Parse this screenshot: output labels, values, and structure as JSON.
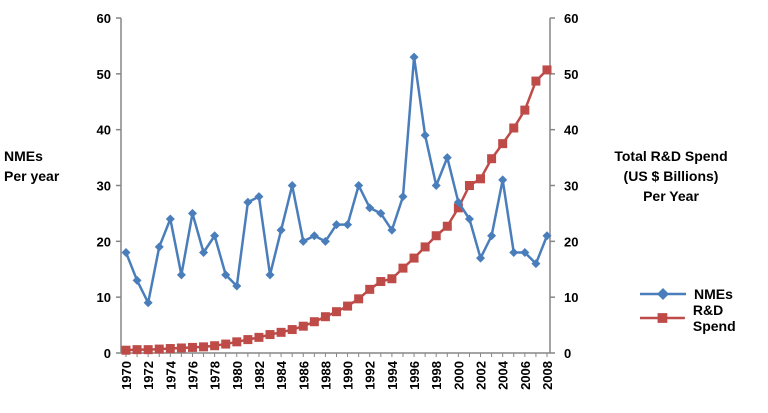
{
  "chart_data": {
    "type": "line",
    "x": [
      1970,
      1971,
      1972,
      1973,
      1974,
      1975,
      1976,
      1977,
      1978,
      1979,
      1980,
      1981,
      1982,
      1983,
      1984,
      1985,
      1986,
      1987,
      1988,
      1989,
      1990,
      1991,
      1992,
      1993,
      1994,
      1995,
      1996,
      1997,
      1998,
      1999,
      2000,
      2001,
      2002,
      2003,
      2004,
      2005,
      2006,
      2007,
      2008
    ],
    "x_tick_labels": [
      "1970",
      "1972",
      "1974",
      "1976",
      "1978",
      "1980",
      "1982",
      "1984",
      "1986",
      "1988",
      "1990",
      "1992",
      "1994",
      "1996",
      "1998",
      "2000",
      "2002",
      "2004",
      "2006",
      "2008"
    ],
    "y_left_label_lines": [
      "NMEs",
      "Per year"
    ],
    "y_right_label_lines": [
      "Total R&D Spend",
      "(US $ Billions)",
      "Per Year"
    ],
    "y_left_ticks": [
      "0",
      "10",
      "20",
      "30",
      "40",
      "50",
      "60"
    ],
    "y_right_ticks": [
      "0",
      "10",
      "20",
      "30",
      "40",
      "50",
      "60"
    ],
    "ylim_left": [
      0,
      60
    ],
    "ylim_right": [
      0,
      60
    ],
    "grid": false,
    "legend_position": "right",
    "series": [
      {
        "name": "NMEs",
        "axis": "left",
        "color": "#4a7ebb",
        "marker": "diamond",
        "values": [
          18,
          13,
          9,
          19,
          24,
          14,
          25,
          18,
          21,
          14,
          12,
          27,
          28,
          14,
          22,
          30,
          20,
          21,
          20,
          23,
          23,
          30,
          26,
          25,
          22,
          28,
          53,
          39,
          30,
          35,
          27,
          24,
          17,
          21,
          31,
          18,
          18,
          16,
          21
        ]
      },
      {
        "name": "R&D Spend",
        "axis": "right",
        "color": "#be4b48",
        "marker": "square",
        "values": [
          0.5,
          0.6,
          0.6,
          0.7,
          0.8,
          0.9,
          1.0,
          1.1,
          1.3,
          1.6,
          2.0,
          2.4,
          2.8,
          3.3,
          3.7,
          4.2,
          4.8,
          5.6,
          6.5,
          7.4,
          8.4,
          9.7,
          11.4,
          12.8,
          13.3,
          15.2,
          17.0,
          19.0,
          21.0,
          22.7,
          26.0,
          30.0,
          31.2,
          34.8,
          37.5,
          40.3,
          43.5,
          48.7,
          50.7
        ]
      }
    ]
  }
}
